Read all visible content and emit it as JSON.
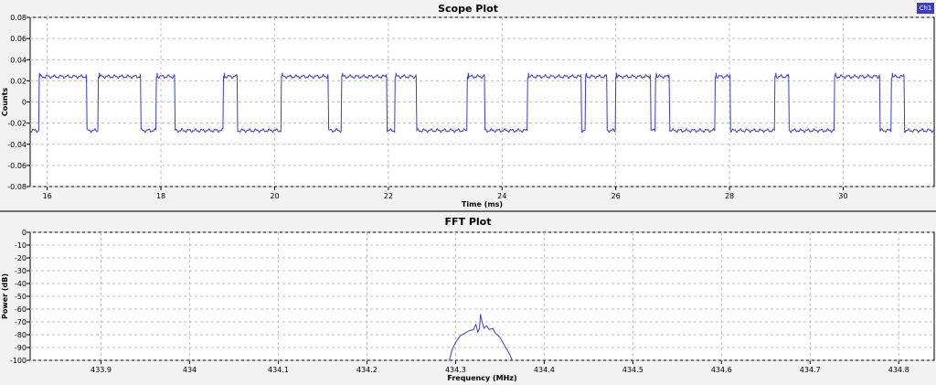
{
  "chart_data": [
    {
      "type": "line",
      "title": "Scope Plot",
      "xlabel": "Time (ms)",
      "ylabel": "Counts",
      "xlim": [
        15.7,
        31.6
      ],
      "ylim": [
        -0.08,
        0.08
      ],
      "x_ticks": [
        16,
        18,
        20,
        22,
        24,
        26,
        28,
        30
      ],
      "y_ticks": [
        0.08,
        0.06,
        0.04,
        0.02,
        0,
        -0.02,
        -0.04,
        -0.06,
        -0.08
      ],
      "x_tick_labels": [
        "16",
        "18",
        "20",
        "22",
        "24",
        "26",
        "28",
        "30"
      ],
      "y_tick_labels": [
        "0.08",
        "0.06",
        "0.04",
        "0.02",
        "0",
        "-0.02",
        "-0.04",
        "-0.06",
        "-0.08"
      ],
      "grid": true,
      "legend": {
        "placement": "top-right",
        "entries": [
          "Ch1"
        ]
      },
      "series": [
        {
          "name": "Ch1",
          "high": 0.024,
          "low": -0.027,
          "high_intervals_ms": [
            [
              15.85,
              16.7
            ],
            [
              16.9,
              17.65
            ],
            [
              17.92,
              18.25
            ],
            [
              19.1,
              19.35
            ],
            [
              20.12,
              20.95
            ],
            [
              21.18,
              21.98
            ],
            [
              22.12,
              22.5
            ],
            [
              23.39,
              23.7
            ],
            [
              24.45,
              25.4
            ],
            [
              25.47,
              25.85
            ],
            [
              26.0,
              26.62
            ],
            [
              26.7,
              26.95
            ],
            [
              27.75,
              28.02
            ],
            [
              28.8,
              29.05
            ],
            [
              29.85,
              30.65
            ],
            [
              30.85,
              31.08
            ]
          ]
        }
      ]
    },
    {
      "type": "line",
      "title": "FFT Plot",
      "xlabel": "Frequency (MHz)",
      "ylabel": "Power (dB)",
      "xlim": [
        433.82,
        434.84
      ],
      "ylim": [
        -100,
        0
      ],
      "x_ticks": [
        433.9,
        434.0,
        434.1,
        434.2,
        434.3,
        434.4,
        434.5,
        434.6,
        434.7,
        434.8
      ],
      "y_ticks": [
        0,
        -10,
        -20,
        -30,
        -40,
        -50,
        -60,
        -70,
        -80,
        -90,
        -100
      ],
      "x_tick_labels": [
        "433.9",
        "434",
        "434.1",
        "434.2",
        "434.3",
        "434.4",
        "434.5",
        "434.6",
        "434.7",
        "434.8"
      ],
      "y_tick_labels": [
        "0",
        "-10",
        "-20",
        "-30",
        "-40",
        "-50",
        "-60",
        "-70",
        "-80",
        "-90",
        "-100"
      ],
      "grid": true,
      "series": [
        {
          "name": "",
          "points": [
            [
              434.293,
              -100
            ],
            [
              434.296,
              -92
            ],
            [
              434.3,
              -86
            ],
            [
              434.305,
              -81
            ],
            [
              434.31,
              -79
            ],
            [
              434.315,
              -77
            ],
            [
              434.32,
              -76
            ],
            [
              434.323,
              -72
            ],
            [
              434.325,
              -78
            ],
            [
              434.327,
              -75
            ],
            [
              434.328,
              -64
            ],
            [
              434.33,
              -70
            ],
            [
              434.332,
              -75
            ],
            [
              434.335,
              -73
            ],
            [
              434.338,
              -76
            ],
            [
              434.342,
              -75
            ],
            [
              434.345,
              -79
            ],
            [
              434.35,
              -82
            ],
            [
              434.355,
              -88
            ],
            [
              434.36,
              -94
            ],
            [
              434.364,
              -100
            ]
          ]
        }
      ]
    }
  ],
  "legend_label": "Ch1"
}
